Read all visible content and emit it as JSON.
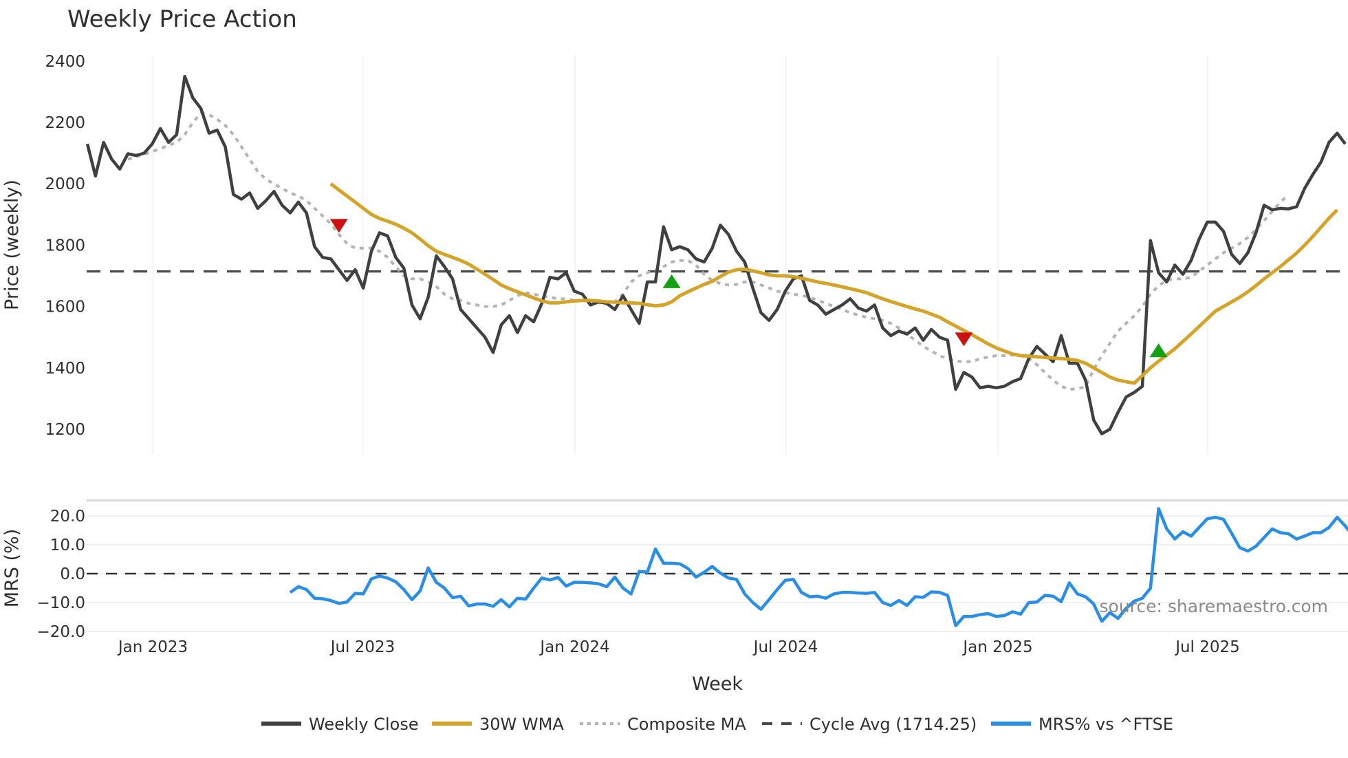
{
  "title": "Weekly Price Action",
  "watermark": "source: sharemaestro.com",
  "colors": {
    "close": "#404040",
    "wma": "#d4a42a",
    "composite": "#b4b4b4",
    "cycle": "#4a4a4a",
    "mrs": "#2b8ee6",
    "sell_marker": "#cc1111",
    "buy_marker": "#13a013",
    "grid": "#eef0f3"
  },
  "axes": {
    "price_ylabel": "Price (weekly)",
    "mrs_ylabel": "MRS (%)",
    "xlabel": "Week",
    "price_ticks": [
      "2400",
      "2200",
      "2000",
      "1800",
      "1600",
      "1400",
      "1200"
    ],
    "mrs_ticks": [
      "20.0",
      "10.0",
      "0.0",
      "−10.0",
      "−20.0"
    ],
    "x_ticks": [
      "Jan 2023",
      "Jul 2023",
      "Jan 2024",
      "Jul 2024",
      "Jan 2025",
      "Jul 2025"
    ]
  },
  "legend": [
    {
      "label": "Weekly Close",
      "style": "solid",
      "color": "#404040"
    },
    {
      "label": "30W WMA",
      "style": "solid",
      "color": "#d4a42a"
    },
    {
      "label": "Composite MA",
      "style": "dotted",
      "color": "#b4b4b4"
    },
    {
      "label": "Cycle Avg (1714.25)",
      "style": "dashed",
      "color": "#4a4a4a"
    },
    {
      "label": "MRS% vs ^FTSE",
      "style": "solid",
      "color": "#2b8ee6"
    }
  ],
  "chart_data": {
    "type": "line",
    "title": "Weekly Price Action",
    "xlabel": "Week",
    "x_start": "2022-11-07",
    "x_interval": "weekly",
    "x_tick_labels": [
      "Jan 2023",
      "Jul 2023",
      "Jan 2024",
      "Jul 2024",
      "Jan 2025",
      "Jul 2025"
    ],
    "panels": [
      {
        "name": "price",
        "ylabel": "Price (weekly)",
        "ylim": [
          1120,
          2420
        ],
        "yticks": [
          1200,
          1400,
          1600,
          1800,
          2000,
          2200,
          2400
        ],
        "series": [
          {
            "name": "Weekly Close",
            "values": [
              2130,
              2025,
              2135,
              2080,
              2048,
              2098,
              2092,
              2100,
              2130,
              2180,
              2135,
              2160,
              2350,
              2280,
              2245,
              2165,
              2175,
              2120,
              1965,
              1950,
              1970,
              1920,
              1945,
              1975,
              1930,
              1905,
              1940,
              1905,
              1795,
              1760,
              1755,
              1720,
              1685,
              1720,
              1660,
              1780,
              1840,
              1830,
              1760,
              1725,
              1605,
              1560,
              1630,
              1765,
              1730,
              1690,
              1590,
              1560,
              1530,
              1500,
              1450,
              1540,
              1570,
              1515,
              1570,
              1550,
              1610,
              1695,
              1690,
              1710,
              1650,
              1640,
              1605,
              1615,
              1610,
              1590,
              1635,
              1590,
              1545,
              1680,
              1680,
              1860,
              1785,
              1795,
              1785,
              1755,
              1745,
              1790,
              1865,
              1835,
              1780,
              1745,
              1660,
              1580,
              1555,
              1590,
              1650,
              1690,
              1700,
              1620,
              1605,
              1575,
              1590,
              1605,
              1625,
              1595,
              1585,
              1605,
              1530,
              1505,
              1520,
              1510,
              1530,
              1490,
              1525,
              1500,
              1490,
              1330,
              1385,
              1370,
              1335,
              1340,
              1335,
              1340,
              1355,
              1365,
              1430,
              1470,
              1445,
              1420,
              1505,
              1415,
              1415,
              1360,
              1230,
              1185,
              1200,
              1255,
              1305,
              1320,
              1340,
              1815,
              1710,
              1680,
              1735,
              1705,
              1750,
              1820,
              1875,
              1875,
              1845,
              1770,
              1740,
              1775,
              1840,
              1930,
              1915,
              1920,
              1918,
              1925,
              1985,
              2030,
              2070,
              2135,
              2165,
              2130
            ]
          },
          {
            "name": "30W WMA",
            "start_index": 30,
            "values": [
              2000,
              1980,
              1960,
              1940,
              1920,
              1900,
              1887,
              1878,
              1868,
              1855,
              1840,
              1820,
              1798,
              1780,
              1770,
              1760,
              1750,
              1738,
              1722,
              1705,
              1688,
              1670,
              1658,
              1648,
              1638,
              1628,
              1618,
              1612,
              1612,
              1615,
              1618,
              1620,
              1620,
              1618,
              1615,
              1614,
              1612,
              1612,
              1610,
              1606,
              1602,
              1605,
              1615,
              1635,
              1648,
              1660,
              1672,
              1682,
              1698,
              1712,
              1720,
              1722,
              1716,
              1710,
              1703,
              1700,
              1700,
              1697,
              1692,
              1686,
              1680,
              1675,
              1670,
              1664,
              1658,
              1652,
              1645,
              1635,
              1625,
              1616,
              1608,
              1600,
              1592,
              1585,
              1575,
              1565,
              1550,
              1536,
              1522,
              1508,
              1493,
              1478,
              1465,
              1455,
              1445,
              1440,
              1438,
              1436,
              1434,
              1432,
              1430,
              1428,
              1424,
              1415,
              1400,
              1385,
              1370,
              1360,
              1355,
              1350,
              1375,
              1400,
              1422,
              1442,
              1462,
              1486,
              1510,
              1535,
              1560,
              1585,
              1600,
              1615,
              1630,
              1648,
              1668,
              1690,
              1710,
              1730,
              1752,
              1774,
              1800,
              1828,
              1858,
              1888,
              1915
            ]
          },
          {
            "name": "Composite MA",
            "start_index": 5,
            "values": [
              2080,
              2088,
              2095,
              2105,
              2115,
              2125,
              2135,
              2160,
              2200,
              2230,
              2225,
              2210,
              2190,
              2160,
              2120,
              2080,
              2040,
              2015,
              2000,
              1985,
              1970,
              1960,
              1945,
              1920,
              1895,
              1870,
              1835,
              1805,
              1790,
              1790,
              1790,
              1780,
              1760,
              1730,
              1700,
              1690,
              1690,
              1680,
              1665,
              1640,
              1625,
              1620,
              1610,
              1605,
              1600,
              1600,
              1605,
              1620,
              1635,
              1645,
              1640,
              1635,
              1630,
              1625,
              1625,
              1620,
              1620,
              1618,
              1612,
              1608,
              1615,
              1640,
              1680,
              1700,
              1710,
              1718,
              1730,
              1745,
              1750,
              1750,
              1735,
              1705,
              1685,
              1675,
              1670,
              1672,
              1680,
              1680,
              1670,
              1660,
              1650,
              1645,
              1640,
              1636,
              1630,
              1620,
              1610,
              1600,
              1590,
              1580,
              1572,
              1565,
              1560,
              1555,
              1545,
              1530,
              1510,
              1490,
              1470,
              1455,
              1440,
              1430,
              1422,
              1420,
              1420,
              1430,
              1435,
              1440,
              1440,
              1442,
              1440,
              1430,
              1410,
              1385,
              1360,
              1340,
              1330,
              1332,
              1338,
              1395,
              1440,
              1480,
              1520,
              1545,
              1570,
              1600,
              1640,
              1668,
              1685,
              1690,
              1690,
              1695,
              1715,
              1735,
              1755,
              1775,
              1790,
              1805,
              1825,
              1850,
              1880,
              1910,
              1940,
              1965
            ]
          },
          {
            "name": "Cycle Avg",
            "constant": 1714.25
          }
        ],
        "markers": [
          {
            "type": "sell",
            "shape": "triangle-down",
            "index": 31,
            "value": 1865
          },
          {
            "type": "buy",
            "shape": "triangle-up",
            "index": 72,
            "value": 1680
          },
          {
            "type": "sell",
            "shape": "triangle-down",
            "index": 108,
            "value": 1495
          },
          {
            "type": "buy",
            "shape": "triangle-up",
            "index": 132,
            "value": 1455
          }
        ]
      },
      {
        "name": "mrs",
        "ylabel": "MRS (%)",
        "ylim": [
          -21,
          25
        ],
        "yticks": [
          -20,
          -10,
          0,
          10,
          20
        ],
        "reference_line": 0,
        "series": [
          {
            "name": "MRS% vs ^FTSE",
            "start_index": 25,
            "values": [
              -6.5,
              -4.5,
              -5.5,
              -8.5,
              -8.7,
              -9.3,
              -10.3,
              -9.8,
              -6.8,
              -7,
              -1.8,
              -0.8,
              -1.5,
              -2.8,
              -5.5,
              -9,
              -6,
              2,
              -3,
              -5,
              -8.3,
              -7.8,
              -11.2,
              -10.5,
              -10.5,
              -11.3,
              -9,
              -11.5,
              -8.5,
              -8.8,
              -5,
              -1.5,
              -2.2,
              -1.3,
              -4.3,
              -3,
              -3,
              -3.2,
              -3.5,
              -4.5,
              -1.2,
              -5,
              -7,
              0.8,
              0.5,
              8.5,
              3.6,
              3.6,
              3.4,
              1.8,
              -1.2,
              0.5,
              2.5,
              0.2,
              -1.5,
              -2,
              -7,
              -10,
              -12.3,
              -9,
              -5.5,
              -2.3,
              -2,
              -6.5,
              -8,
              -7.8,
              -8.5,
              -7,
              -6.5,
              -6.5,
              -6.7,
              -6.8,
              -6.5,
              -10,
              -11,
              -9.3,
              -11,
              -8,
              -8.2,
              -6.3,
              -6.5,
              -7.5,
              -18,
              -14.8,
              -14.8,
              -14.2,
              -13.8,
              -14.8,
              -14.5,
              -13.2,
              -14,
              -10,
              -9.8,
              -7.5,
              -7.8,
              -9.7,
              -3.2,
              -7,
              -8,
              -10.5,
              -16.5,
              -13.5,
              -15.5,
              -12,
              -9.5,
              -8.5,
              -5,
              22.5,
              15.5,
              12,
              14.5,
              13,
              16,
              19,
              19.5,
              18.8,
              14,
              9,
              7.8,
              9.5,
              12.5,
              15.5,
              14.2,
              13.8,
              12,
              13,
              14.2,
              14.2,
              16,
              19.5,
              16.5,
              13
            ]
          }
        ]
      }
    ],
    "legend_position": "bottom",
    "grid": true
  }
}
